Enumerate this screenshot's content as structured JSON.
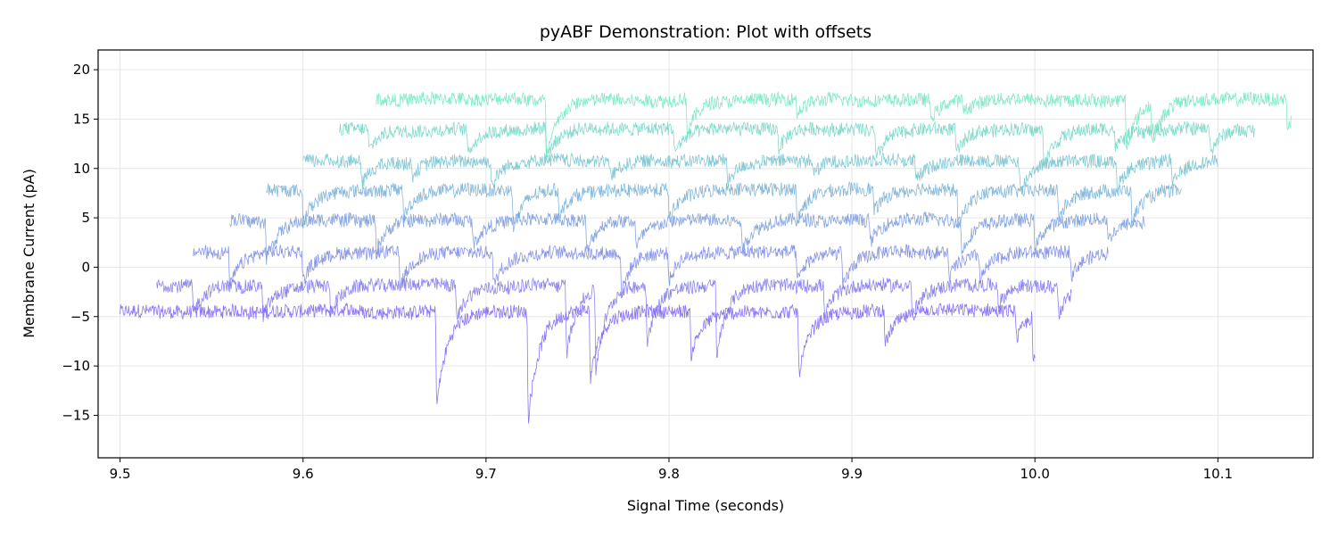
{
  "chart_data": {
    "type": "line",
    "title": "pyABF Demonstration: Plot with offsets",
    "xlabel": "Signal Time (seconds)",
    "ylabel": "Membrane Current (pA)",
    "xlim": [
      9.488,
      10.152
    ],
    "ylim": [
      -19.3,
      22.0
    ],
    "xticks": [
      9.5,
      9.6,
      9.7,
      9.8,
      9.9,
      10.0,
      10.1
    ],
    "xtick_labels": [
      "9.5",
      "9.6",
      "9.7",
      "9.8",
      "9.9",
      "10.0",
      "10.1"
    ],
    "yticks": [
      -15,
      -10,
      -5,
      0,
      5,
      10,
      15,
      20
    ],
    "ytick_labels": [
      "−15",
      "−10",
      "−5",
      "0",
      "5",
      "10",
      "15",
      "20"
    ],
    "grid": true,
    "legend": "none",
    "x_offset_per_sweep": 0.02,
    "y_offset_per_sweep": 3.0,
    "sweep_duration": 0.5,
    "colormap": [
      "#7a5cf5",
      "#6ae8bb"
    ],
    "series": [
      {
        "x_start": 9.5,
        "x_end": 10.0,
        "baseline": -4.5,
        "events": [
          [
            9.673,
            -14.0
          ],
          [
            9.723,
            -15.5
          ],
          [
            9.757,
            -11.5
          ],
          [
            9.812,
            -9.0
          ],
          [
            9.871,
            -10.8
          ],
          [
            9.918,
            -8.0
          ],
          [
            9.99,
            -7.5
          ],
          [
            9.999,
            -9.5
          ]
        ]
      },
      {
        "x_start": 9.52,
        "x_end": 10.02,
        "baseline": -1.8,
        "events": [
          [
            9.54,
            -4.5
          ],
          [
            9.578,
            -5.0
          ],
          [
            9.615,
            -4.5
          ],
          [
            9.684,
            -5.2
          ],
          [
            9.744,
            -8.8
          ],
          [
            9.76,
            -10.0
          ],
          [
            9.788,
            -7.5
          ],
          [
            9.826,
            -9.0
          ],
          [
            9.885,
            -5.0
          ],
          [
            9.933,
            -5.0
          ],
          [
            9.98,
            -4.0
          ],
          [
            10.013,
            -4.5
          ]
        ]
      },
      {
        "x_start": 9.54,
        "x_end": 10.04,
        "baseline": 1.5,
        "events": [
          [
            9.56,
            -2.0
          ],
          [
            9.6,
            -1.5
          ],
          [
            9.653,
            -2.0
          ],
          [
            9.704,
            -1.8
          ],
          [
            9.774,
            -2.5
          ],
          [
            9.8,
            -1.5
          ],
          [
            9.87,
            -1.5
          ],
          [
            9.895,
            -2.0
          ],
          [
            9.953,
            -1.0
          ],
          [
            9.97,
            -1.2
          ],
          [
            10.02,
            -1.0
          ]
        ]
      },
      {
        "x_start": 9.56,
        "x_end": 10.06,
        "baseline": 4.8,
        "events": [
          [
            9.58,
            1.0
          ],
          [
            9.64,
            1.8
          ],
          [
            9.693,
            2.2
          ],
          [
            9.755,
            1.5
          ],
          [
            9.782,
            2.0
          ],
          [
            9.84,
            1.8
          ],
          [
            9.91,
            2.5
          ],
          [
            9.96,
            1.5
          ],
          [
            10.0,
            2.0
          ],
          [
            10.04,
            2.5
          ]
        ]
      },
      {
        "x_start": 9.58,
        "x_end": 10.08,
        "baseline": 7.8,
        "events": [
          [
            9.6,
            4.5
          ],
          [
            9.655,
            5.0
          ],
          [
            9.715,
            4.0
          ],
          [
            9.74,
            5.2
          ],
          [
            9.8,
            5.0
          ],
          [
            9.87,
            4.8
          ],
          [
            9.912,
            5.5
          ],
          [
            9.958,
            3.8
          ],
          [
            10.013,
            5.0
          ],
          [
            10.053,
            4.5
          ]
        ]
      },
      {
        "x_start": 9.6,
        "x_end": 10.1,
        "baseline": 10.8,
        "events": [
          [
            9.632,
            8.5
          ],
          [
            9.66,
            9.5
          ],
          [
            9.703,
            8.2
          ],
          [
            9.768,
            9.0
          ],
          [
            9.832,
            8.5
          ],
          [
            9.879,
            9.5
          ],
          [
            9.935,
            8.8
          ],
          [
            9.992,
            7.5
          ],
          [
            10.045,
            8.0
          ],
          [
            10.075,
            8.2
          ]
        ]
      },
      {
        "x_start": 9.62,
        "x_end": 10.12,
        "baseline": 14.0,
        "events": [
          [
            9.636,
            11.8
          ],
          [
            9.69,
            11.5
          ],
          [
            9.733,
            11.0
          ],
          [
            9.803,
            11.5
          ],
          [
            9.86,
            12.0
          ],
          [
            9.913,
            11.0
          ],
          [
            9.957,
            11.5
          ],
          [
            10.005,
            10.5
          ],
          [
            10.044,
            12.0
          ],
          [
            10.096,
            11.8
          ]
        ]
      },
      {
        "x_start": 9.64,
        "x_end": 10.14,
        "baseline": 17.0,
        "events": [
          [
            9.733,
            11.0
          ],
          [
            9.81,
            13.5
          ],
          [
            9.87,
            15.5
          ],
          [
            9.943,
            15.0
          ],
          [
            9.961,
            15.8
          ],
          [
            10.05,
            12.0
          ],
          [
            10.064,
            13.0
          ],
          [
            10.138,
            14.0
          ]
        ]
      }
    ]
  }
}
